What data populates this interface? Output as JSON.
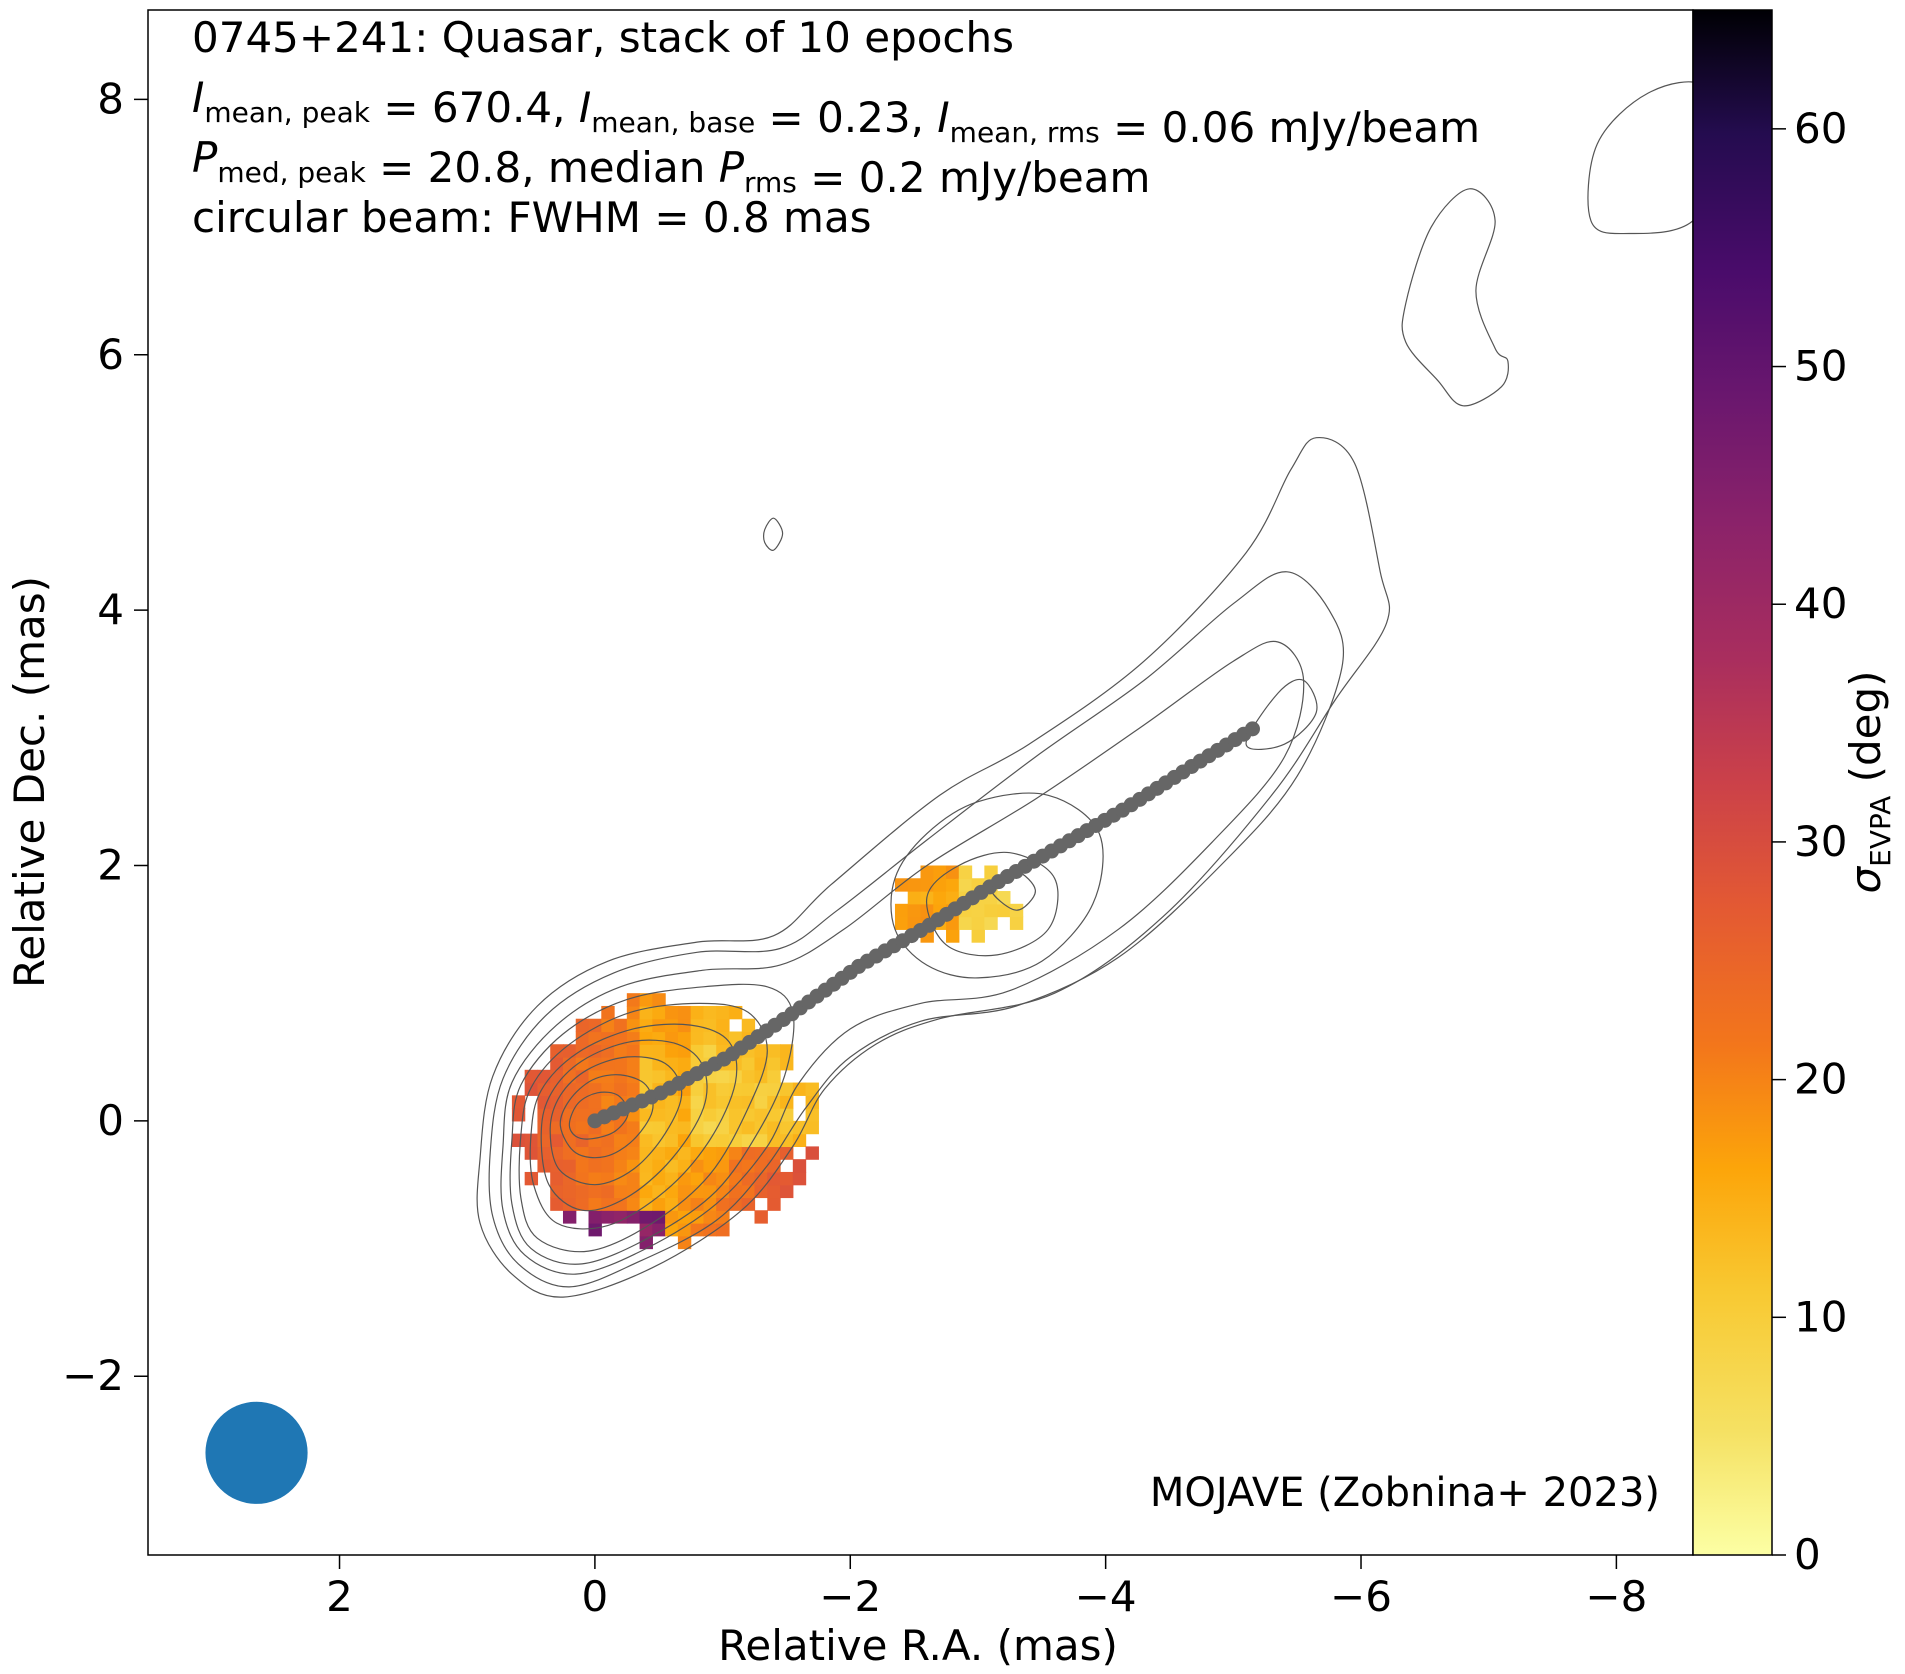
{
  "chart_data": {
    "type": "heatmap",
    "title_lines": [
      {
        "parts": [
          {
            "t": "0745+241: Quasar, stack of 10 epochs"
          }
        ]
      },
      {
        "parts": [
          {
            "t": "I",
            "i": 1
          },
          {
            "t": "mean, peak",
            "s": 1
          },
          {
            "t": " = 670.4, "
          },
          {
            "t": "I",
            "i": 1
          },
          {
            "t": "mean, base",
            "s": 1
          },
          {
            "t": " = 0.23, "
          },
          {
            "t": "I",
            "i": 1
          },
          {
            "t": "mean, rms",
            "s": 1
          },
          {
            "t": " = 0.06 mJy/beam"
          }
        ]
      },
      {
        "parts": [
          {
            "t": "P",
            "i": 1
          },
          {
            "t": "med, peak",
            "s": 1
          },
          {
            "t": " = 20.8, median "
          },
          {
            "t": "P",
            "i": 1
          },
          {
            "t": "rms",
            "s": 1
          },
          {
            "t": " = 0.2 mJy/beam"
          }
        ]
      },
      {
        "parts": [
          {
            "t": "circular beam: FWHM = 0.8 mas"
          }
        ]
      }
    ],
    "xlabel": "Relative R.A. (mas)",
    "ylabel": "Relative Dec. (mas)",
    "xlim": [
      3.5,
      -8.6
    ],
    "ylim": [
      -3.4,
      8.7
    ],
    "x_ticks": [
      2,
      0,
      -2,
      -4,
      -6,
      -8
    ],
    "x_tick_labels": [
      "2",
      "0",
      "−2",
      "−4",
      "−6",
      "−8"
    ],
    "y_ticks": [
      -2,
      0,
      2,
      4,
      6,
      8
    ],
    "y_tick_labels": [
      "−2",
      "0",
      "2",
      "4",
      "6",
      "8"
    ],
    "annotation": "MOJAVE (Zobnina+ 2023)",
    "colorbar": {
      "label_main": "σ",
      "label_sub": "EVPA",
      "label_rest": " (deg)",
      "range": [
        0,
        65
      ],
      "ticks": [
        0,
        10,
        20,
        30,
        40,
        50,
        60
      ],
      "colormap": "inferno_r"
    },
    "beam": {
      "x": 2.65,
      "y": -2.6,
      "fwhm_mas": 0.8,
      "color": "#1f77b4"
    },
    "ridge_line": {
      "color": "#666666",
      "points": [
        [
          0,
          0
        ],
        [
          -0.52,
          0.22
        ],
        [
          -1.04,
          0.5
        ],
        [
          -1.56,
          0.85
        ],
        [
          -2.08,
          1.22
        ],
        [
          -2.6,
          1.52
        ],
        [
          -3.12,
          1.85
        ],
        [
          -3.64,
          2.15
        ],
        [
          -4.16,
          2.45
        ],
        [
          -4.68,
          2.78
        ],
        [
          -5.15,
          3.07
        ]
      ],
      "n_markers": 76
    },
    "contours": {
      "color": "#555555",
      "levels": [
        {
          "name": "outer",
          "points": [
            [
              0.9,
              -0.3
            ],
            [
              0.8,
              0.35
            ],
            [
              0.45,
              0.9
            ],
            [
              -0.1,
              1.25
            ],
            [
              -0.8,
              1.4
            ],
            [
              -1.4,
              1.45
            ],
            [
              -1.85,
              1.85
            ],
            [
              -2.7,
              2.55
            ],
            [
              -3.4,
              2.95
            ],
            [
              -4.3,
              3.6
            ],
            [
              -5.1,
              4.45
            ],
            [
              -5.45,
              5.1
            ],
            [
              -5.65,
              5.35
            ],
            [
              -5.95,
              5.15
            ],
            [
              -6.15,
              4.3
            ],
            [
              -6.2,
              3.9
            ],
            [
              -5.8,
              3.3
            ],
            [
              -5.3,
              2.55
            ],
            [
              -4.45,
              1.6
            ],
            [
              -3.6,
              1.0
            ],
            [
              -2.7,
              0.8
            ],
            [
              -2.2,
              0.6
            ],
            [
              -1.8,
              0.25
            ],
            [
              -1.55,
              -0.2
            ],
            [
              -1.15,
              -0.7
            ],
            [
              -0.45,
              -1.15
            ],
            [
              0.25,
              -1.38
            ],
            [
              0.65,
              -1.2
            ],
            [
              0.9,
              -0.8
            ]
          ]
        },
        {
          "name": "c2",
          "points": [
            [
              0.82,
              -0.25
            ],
            [
              0.72,
              0.33
            ],
            [
              0.38,
              0.83
            ],
            [
              -0.15,
              1.16
            ],
            [
              -0.8,
              1.32
            ],
            [
              -1.45,
              1.35
            ],
            [
              -1.9,
              1.65
            ],
            [
              -2.6,
              2.2
            ],
            [
              -3.45,
              2.85
            ],
            [
              -4.3,
              3.45
            ],
            [
              -5.0,
              4.05
            ],
            [
              -5.42,
              4.3
            ],
            [
              -5.75,
              4.0
            ],
            [
              -5.85,
              3.55
            ],
            [
              -5.5,
              2.7
            ],
            [
              -4.9,
              2.0
            ],
            [
              -4.1,
              1.28
            ],
            [
              -3.3,
              0.9
            ],
            [
              -2.55,
              0.78
            ],
            [
              -2.0,
              0.5
            ],
            [
              -1.65,
              0.1
            ],
            [
              -1.35,
              -0.35
            ],
            [
              -0.95,
              -0.78
            ],
            [
              -0.35,
              -1.1
            ],
            [
              0.2,
              -1.3
            ],
            [
              0.6,
              -1.12
            ],
            [
              0.8,
              -0.75
            ]
          ]
        },
        {
          "name": "c3",
          "points": [
            [
              0.72,
              -0.2
            ],
            [
              0.65,
              0.3
            ],
            [
              0.3,
              0.75
            ],
            [
              -0.2,
              1.05
            ],
            [
              -0.85,
              1.18
            ],
            [
              -1.45,
              1.22
            ],
            [
              -1.95,
              1.5
            ],
            [
              -2.6,
              2.0
            ],
            [
              -3.45,
              2.52
            ],
            [
              -4.3,
              3.1
            ],
            [
              -5.0,
              3.6
            ],
            [
              -5.35,
              3.75
            ],
            [
              -5.55,
              3.45
            ],
            [
              -5.4,
              2.85
            ],
            [
              -4.85,
              2.2
            ],
            [
              -4.1,
              1.5
            ],
            [
              -3.25,
              1.02
            ],
            [
              -2.55,
              0.92
            ],
            [
              -2.0,
              0.72
            ],
            [
              -1.6,
              0.3
            ],
            [
              -1.35,
              -0.2
            ],
            [
              -0.95,
              -0.65
            ],
            [
              -0.4,
              -1.0
            ],
            [
              0.15,
              -1.2
            ],
            [
              0.55,
              -1.05
            ],
            [
              0.72,
              -0.7
            ]
          ]
        },
        {
          "name": "c4",
          "points": [
            [
              0.65,
              -0.15
            ],
            [
              0.58,
              0.28
            ],
            [
              0.25,
              0.68
            ],
            [
              -0.25,
              0.95
            ],
            [
              -0.85,
              1.05
            ],
            [
              -1.35,
              1.05
            ],
            [
              -1.55,
              0.85
            ],
            [
              -1.5,
              0.4
            ],
            [
              -1.3,
              -0.05
            ],
            [
              -0.95,
              -0.55
            ],
            [
              -0.45,
              -0.9
            ],
            [
              0.1,
              -1.12
            ],
            [
              0.5,
              -1.0
            ],
            [
              0.65,
              -0.65
            ]
          ]
        },
        {
          "name": "c5",
          "points": [
            [
              0.58,
              -0.12
            ],
            [
              0.5,
              0.26
            ],
            [
              0.2,
              0.6
            ],
            [
              -0.28,
              0.85
            ],
            [
              -0.82,
              0.92
            ],
            [
              -1.2,
              0.85
            ],
            [
              -1.35,
              0.55
            ],
            [
              -1.2,
              0.1
            ],
            [
              -0.9,
              -0.42
            ],
            [
              -0.45,
              -0.8
            ],
            [
              0.05,
              -1.02
            ],
            [
              0.45,
              -0.92
            ],
            [
              0.58,
              -0.6
            ]
          ]
        },
        {
          "name": "c6",
          "points": [
            [
              0.5,
              -0.1
            ],
            [
              0.42,
              0.24
            ],
            [
              0.14,
              0.53
            ],
            [
              -0.3,
              0.72
            ],
            [
              -0.75,
              0.75
            ],
            [
              -1.05,
              0.62
            ],
            [
              -1.1,
              0.3
            ],
            [
              -0.9,
              -0.15
            ],
            [
              -0.55,
              -0.55
            ],
            [
              -0.1,
              -0.82
            ],
            [
              0.3,
              -0.8
            ],
            [
              0.48,
              -0.5
            ]
          ]
        },
        {
          "name": "c7",
          "points": [
            [
              0.42,
              -0.08
            ],
            [
              0.34,
              0.22
            ],
            [
              0.1,
              0.47
            ],
            [
              -0.28,
              0.62
            ],
            [
              -0.65,
              0.6
            ],
            [
              -0.85,
              0.42
            ],
            [
              -0.85,
              0.1
            ],
            [
              -0.6,
              -0.3
            ],
            [
              -0.25,
              -0.6
            ],
            [
              0.1,
              -0.7
            ],
            [
              0.36,
              -0.5
            ]
          ]
        },
        {
          "name": "c8",
          "points": [
            [
              0.35,
              -0.06
            ],
            [
              0.27,
              0.2
            ],
            [
              0.06,
              0.4
            ],
            [
              -0.25,
              0.5
            ],
            [
              -0.55,
              0.45
            ],
            [
              -0.68,
              0.22
            ],
            [
              -0.55,
              -0.1
            ],
            [
              -0.3,
              -0.38
            ],
            [
              0.0,
              -0.5
            ],
            [
              0.28,
              -0.38
            ]
          ]
        },
        {
          "name": "c9",
          "points": [
            [
              0.27,
              -0.04
            ],
            [
              0.2,
              0.16
            ],
            [
              0.02,
              0.32
            ],
            [
              -0.2,
              0.36
            ],
            [
              -0.4,
              0.28
            ],
            [
              -0.45,
              0.08
            ],
            [
              -0.3,
              -0.15
            ],
            [
              -0.08,
              -0.28
            ],
            [
              0.15,
              -0.25
            ]
          ]
        },
        {
          "name": "c10",
          "points": [
            [
              0.2,
              -0.02
            ],
            [
              0.13,
              0.14
            ],
            [
              -0.02,
              0.22
            ],
            [
              -0.18,
              0.2
            ],
            [
              -0.26,
              0.06
            ],
            [
              -0.16,
              -0.08
            ],
            [
              0.02,
              -0.14
            ],
            [
              0.15,
              -0.12
            ]
          ]
        },
        {
          "name": "knot1",
          "points": [
            [
              -2.35,
              1.9
            ],
            [
              -2.6,
              2.25
            ],
            [
              -3.0,
              2.5
            ],
            [
              -3.55,
              2.55
            ],
            [
              -3.95,
              2.25
            ],
            [
              -3.9,
              1.7
            ],
            [
              -3.5,
              1.25
            ],
            [
              -3.0,
              1.12
            ],
            [
              -2.6,
              1.22
            ],
            [
              -2.35,
              1.5
            ]
          ]
        },
        {
          "name": "knot2",
          "points": [
            [
              -2.6,
              1.75
            ],
            [
              -2.85,
              2.0
            ],
            [
              -3.25,
              2.1
            ],
            [
              -3.6,
              1.9
            ],
            [
              -3.55,
              1.5
            ],
            [
              -3.15,
              1.3
            ],
            [
              -2.75,
              1.38
            ]
          ]
        },
        {
          "name": "knot3",
          "points": [
            [
              -3.1,
              1.82
            ],
            [
              -3.3,
              1.95
            ],
            [
              -3.45,
              1.8
            ],
            [
              -3.3,
              1.65
            ]
          ]
        },
        {
          "name": "knot4",
          "points": [
            [
              -5.1,
              2.95
            ],
            [
              -5.35,
              3.35
            ],
            [
              -5.55,
              3.45
            ],
            [
              -5.65,
              3.2
            ],
            [
              -5.4,
              2.95
            ]
          ]
        },
        {
          "name": "cloud_a",
          "points": [
            [
              -6.35,
              6.4
            ],
            [
              -6.55,
              7.0
            ],
            [
              -6.85,
              7.3
            ],
            [
              -7.05,
              7.05
            ],
            [
              -6.9,
              6.5
            ],
            [
              -7.05,
              6.05
            ],
            [
              -7.15,
              5.95
            ],
            [
              -7.1,
              5.75
            ],
            [
              -6.8,
              5.6
            ],
            [
              -6.6,
              5.8
            ],
            [
              -6.35,
              6.1
            ]
          ]
        },
        {
          "name": "cloud_b",
          "points": [
            [
              -7.8,
              7.05
            ],
            [
              -7.85,
              7.65
            ],
            [
              -8.25,
              8.05
            ],
            [
              -8.7,
              8.1
            ],
            [
              -8.85,
              7.6
            ],
            [
              -8.6,
              7.05
            ],
            [
              -8.1,
              6.95
            ]
          ]
        },
        {
          "name": "cloud_c",
          "points": [
            [
              -1.33,
              4.63
            ],
            [
              -1.4,
              4.72
            ],
            [
              -1.47,
              4.6
            ],
            [
              -1.4,
              4.47
            ],
            [
              -1.33,
              4.53
            ]
          ]
        }
      ]
    }
  }
}
